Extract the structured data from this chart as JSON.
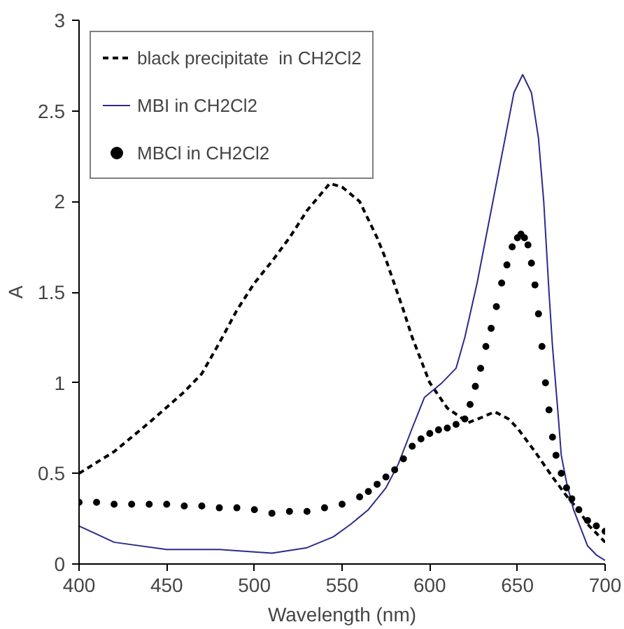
{
  "chart_data": {
    "type": "line",
    "xlabel": "Wavelength (nm)",
    "ylabel": "A",
    "xlim": [
      400,
      700
    ],
    "ylim": [
      0,
      3
    ],
    "xticks": [
      400,
      450,
      500,
      550,
      600,
      650,
      700
    ],
    "yticks": [
      0,
      0.5,
      1,
      1.5,
      2,
      2.5,
      3
    ],
    "grid": false,
    "legend": "top left",
    "series": [
      {
        "name": "black precipitate  in CH2Cl2",
        "color": "#000000",
        "line_style": "dashed",
        "x": [
          400,
          420,
          440,
          460,
          470,
          480,
          490,
          500,
          510,
          520,
          530,
          543,
          550,
          560,
          570,
          575,
          585,
          590,
          600,
          610,
          622,
          630,
          637,
          645,
          650,
          660,
          670,
          680,
          685,
          690,
          700
        ],
        "values": [
          0.5,
          0.62,
          0.78,
          0.95,
          1.05,
          1.22,
          1.4,
          1.55,
          1.67,
          1.8,
          1.95,
          2.1,
          2.08,
          2.0,
          1.8,
          1.68,
          1.4,
          1.25,
          1.0,
          0.86,
          0.78,
          0.81,
          0.84,
          0.8,
          0.75,
          0.62,
          0.48,
          0.35,
          0.3,
          0.22,
          0.12
        ]
      },
      {
        "name": "MBI in CH2Cl2",
        "color": "#2b2b8c",
        "line_style": "solid",
        "x": [
          400,
          420,
          450,
          480,
          510,
          530,
          545,
          555,
          565,
          575,
          582,
          590,
          597,
          607,
          615,
          620,
          627,
          635,
          640,
          645,
          648,
          653,
          658,
          662,
          665,
          668,
          670,
          673,
          675,
          678,
          682,
          686,
          690,
          695,
          700
        ],
        "values": [
          0.21,
          0.12,
          0.08,
          0.08,
          0.06,
          0.09,
          0.15,
          0.22,
          0.3,
          0.42,
          0.55,
          0.75,
          0.92,
          1.0,
          1.08,
          1.25,
          1.55,
          1.95,
          2.2,
          2.45,
          2.6,
          2.7,
          2.6,
          2.35,
          2.0,
          1.5,
          1.2,
          0.85,
          0.6,
          0.45,
          0.3,
          0.2,
          0.1,
          0.05,
          0.02
        ]
      },
      {
        "name": "MBCl in CH2Cl2",
        "color": "#000000",
        "type": "scatter",
        "marker": "circle",
        "x": [
          400,
          410,
          420,
          430,
          440,
          450,
          460,
          470,
          480,
          490,
          500,
          510,
          520,
          530,
          540,
          550,
          560,
          565,
          570,
          575,
          580,
          585,
          590,
          595,
          600,
          605,
          610,
          615,
          620,
          623,
          626,
          629,
          632,
          635,
          638,
          641,
          644,
          647,
          650,
          652,
          654,
          656,
          658,
          660,
          662,
          664,
          666,
          668,
          670,
          672,
          675,
          678,
          681,
          685,
          690,
          695,
          700
        ],
        "values": [
          0.34,
          0.34,
          0.33,
          0.33,
          0.33,
          0.33,
          0.32,
          0.32,
          0.31,
          0.31,
          0.3,
          0.28,
          0.29,
          0.29,
          0.31,
          0.33,
          0.37,
          0.4,
          0.44,
          0.48,
          0.52,
          0.58,
          0.65,
          0.69,
          0.72,
          0.74,
          0.75,
          0.77,
          0.8,
          0.88,
          0.98,
          1.08,
          1.2,
          1.3,
          1.42,
          1.55,
          1.65,
          1.75,
          1.8,
          1.82,
          1.8,
          1.76,
          1.66,
          1.54,
          1.38,
          1.2,
          1.0,
          0.85,
          0.7,
          0.6,
          0.5,
          0.42,
          0.36,
          0.3,
          0.24,
          0.21,
          0.18
        ]
      }
    ]
  }
}
